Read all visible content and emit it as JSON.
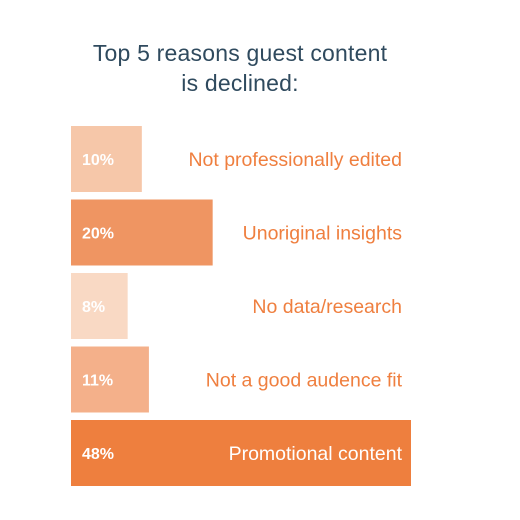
{
  "chart_data": {
    "type": "bar",
    "orientation": "horizontal",
    "title": [
      "Top 5 reasons guest content",
      "is declined:"
    ],
    "categories": [
      "Not professionally edited",
      "Unoriginal insights",
      "No data/research",
      "Not a good audence fit",
      "Promotional content"
    ],
    "values": [
      10,
      20,
      8,
      11,
      48
    ],
    "value_labels": [
      "10%",
      "20%",
      "8%",
      "11%",
      "48%"
    ],
    "xlim": [
      0,
      48
    ],
    "grid": false,
    "legend": "none"
  },
  "colors": {
    "title": "#2f4a5e",
    "bars": [
      "#f6c7a9",
      "#ef9562",
      "#f9d9c4",
      "#f4b08a",
      "#ee7f3e"
    ],
    "category_label": "#ef7f3f",
    "value_label": "#ffffff"
  }
}
